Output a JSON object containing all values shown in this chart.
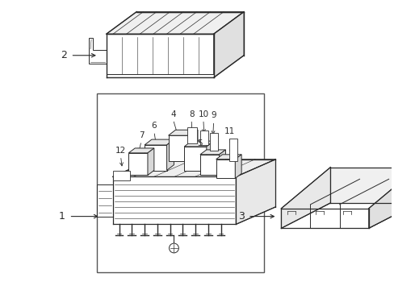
{
  "bg": "#ffffff",
  "lc": "#2a2a2a",
  "lw": 0.7,
  "fig_w": 4.89,
  "fig_h": 3.6,
  "dpi": 100
}
